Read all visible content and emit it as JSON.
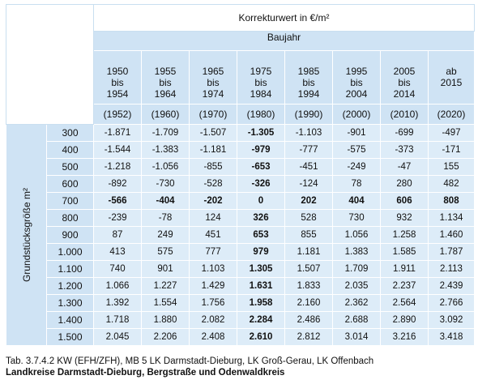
{
  "table": {
    "header_title": "Korrekturwert in €/m²",
    "baujahr_label": "Baujahr",
    "row_axis_label": "Grundstücksgröße m²",
    "columns": [
      {
        "period": [
          "1950",
          "bis",
          "1954"
        ],
        "year": "(1952)"
      },
      {
        "period": [
          "1955",
          "bis",
          "1964"
        ],
        "year": "(1960)"
      },
      {
        "period": [
          "1965",
          "bis",
          "1974"
        ],
        "year": "(1970)"
      },
      {
        "period": [
          "1975",
          "bis",
          "1984"
        ],
        "year": "(1980)"
      },
      {
        "period": [
          "1985",
          "bis",
          "1994"
        ],
        "year": "(1990)"
      },
      {
        "period": [
          "1995",
          "bis",
          "2004"
        ],
        "year": "(2000)"
      },
      {
        "period": [
          "2005",
          "bis",
          "2014"
        ],
        "year": "(2010)"
      },
      {
        "period": [
          "ab",
          "2015",
          ""
        ],
        "year": "(2020)"
      }
    ],
    "rows": [
      {
        "size": "300",
        "bold_row": false,
        "values": [
          "-1.871",
          "-1.709",
          "-1.507",
          "-1.305",
          "-1.103",
          "-901",
          "-699",
          "-497"
        ]
      },
      {
        "size": "400",
        "bold_row": false,
        "values": [
          "-1.544",
          "-1.383",
          "-1.181",
          "-979",
          "-777",
          "-575",
          "-373",
          "-171"
        ]
      },
      {
        "size": "500",
        "bold_row": false,
        "values": [
          "-1.218",
          "-1.056",
          "-855",
          "-653",
          "-451",
          "-249",
          "-47",
          "155"
        ]
      },
      {
        "size": "600",
        "bold_row": false,
        "values": [
          "-892",
          "-730",
          "-528",
          "-326",
          "-124",
          "78",
          "280",
          "482"
        ]
      },
      {
        "size": "700",
        "bold_row": true,
        "values": [
          "-566",
          "-404",
          "-202",
          "0",
          "202",
          "404",
          "606",
          "808"
        ]
      },
      {
        "size": "800",
        "bold_row": false,
        "values": [
          "-239",
          "-78",
          "124",
          "326",
          "528",
          "730",
          "932",
          "1.134"
        ]
      },
      {
        "size": "900",
        "bold_row": false,
        "values": [
          "87",
          "249",
          "451",
          "653",
          "855",
          "1.056",
          "1.258",
          "1.460"
        ]
      },
      {
        "size": "1.000",
        "bold_row": false,
        "values": [
          "413",
          "575",
          "777",
          "979",
          "1.181",
          "1.383",
          "1.585",
          "1.787"
        ]
      },
      {
        "size": "1.100",
        "bold_row": false,
        "values": [
          "740",
          "901",
          "1.103",
          "1.305",
          "1.507",
          "1.709",
          "1.911",
          "2.113"
        ]
      },
      {
        "size": "1.200",
        "bold_row": false,
        "values": [
          "1.066",
          "1.227",
          "1.429",
          "1.631",
          "1.833",
          "2.035",
          "2.237",
          "2.439"
        ]
      },
      {
        "size": "1.300",
        "bold_row": false,
        "values": [
          "1.392",
          "1.554",
          "1.756",
          "1.958",
          "2.160",
          "2.362",
          "2.564",
          "2.766"
        ]
      },
      {
        "size": "1.400",
        "bold_row": false,
        "values": [
          "1.718",
          "1.880",
          "2.082",
          "2.284",
          "2.486",
          "2.688",
          "2.890",
          "3.092"
        ]
      },
      {
        "size": "1.500",
        "bold_row": false,
        "values": [
          "2.045",
          "2.206",
          "2.408",
          "2.610",
          "2.812",
          "3.014",
          "3.216",
          "3.418"
        ]
      }
    ],
    "bold_column_index": 3
  },
  "caption": {
    "line1": "Tab. 3.7.4.2 KW (EFH/ZFH), MB 5 LK Darmstadt-Dieburg, LK Groß-Gerau, LK Offenbach",
    "line2": "Landkreise Darmstadt-Dieburg, Bergstraße und Odenwaldkreis"
  },
  "colors": {
    "header_blue": "#cfe3f4",
    "cell_blue": "#ddecf8"
  }
}
